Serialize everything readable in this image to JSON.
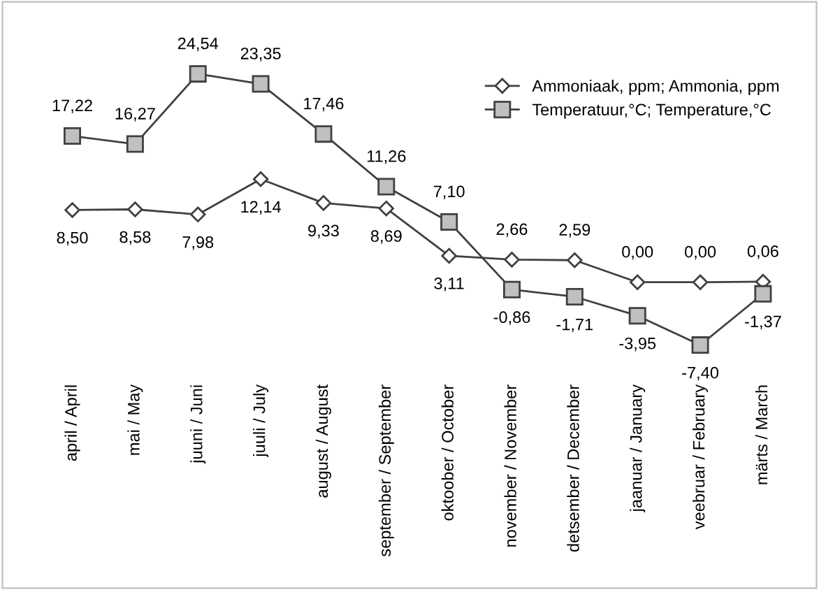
{
  "chart_data": {
    "type": "line",
    "categories": [
      "april / April",
      "mai / May",
      "juuni / Juni",
      "juuli / July",
      "august / August",
      "september / September",
      "oktoober / October",
      "november / November",
      "detsember / December",
      "jaanuar / January",
      "veebruar / February",
      "märts / March"
    ],
    "series": [
      {
        "name": "Ammoniaak, ppm; Ammonia, ppm",
        "color": "#404040",
        "marker": "diamond",
        "values": [
          8.5,
          8.58,
          7.98,
          12.14,
          9.33,
          8.69,
          3.11,
          2.66,
          2.59,
          0.0,
          0.0,
          0.06
        ],
        "value_labels": [
          "8,50",
          "8,58",
          "7,98",
          "12,14",
          "9,33",
          "8,69",
          "3,11",
          "2,66",
          "2,59",
          "0,00",
          "0,00",
          "0,06"
        ]
      },
      {
        "name": "Temperatuur,°C; Temperature,°C",
        "color": "#404040",
        "marker": "square",
        "values": [
          17.22,
          16.27,
          24.54,
          23.35,
          17.46,
          11.26,
          7.1,
          -0.86,
          -1.71,
          -3.95,
          -7.4,
          -1.37
        ],
        "value_labels": [
          "17,22",
          "16,27",
          "24,54",
          "23,35",
          "17,46",
          "11,26",
          "7,10",
          "-0,86",
          "-1,71",
          "-3,95",
          "-7,40",
          "-1,37"
        ]
      }
    ],
    "legend": "top right",
    "grid": false,
    "line_style": "solid"
  }
}
